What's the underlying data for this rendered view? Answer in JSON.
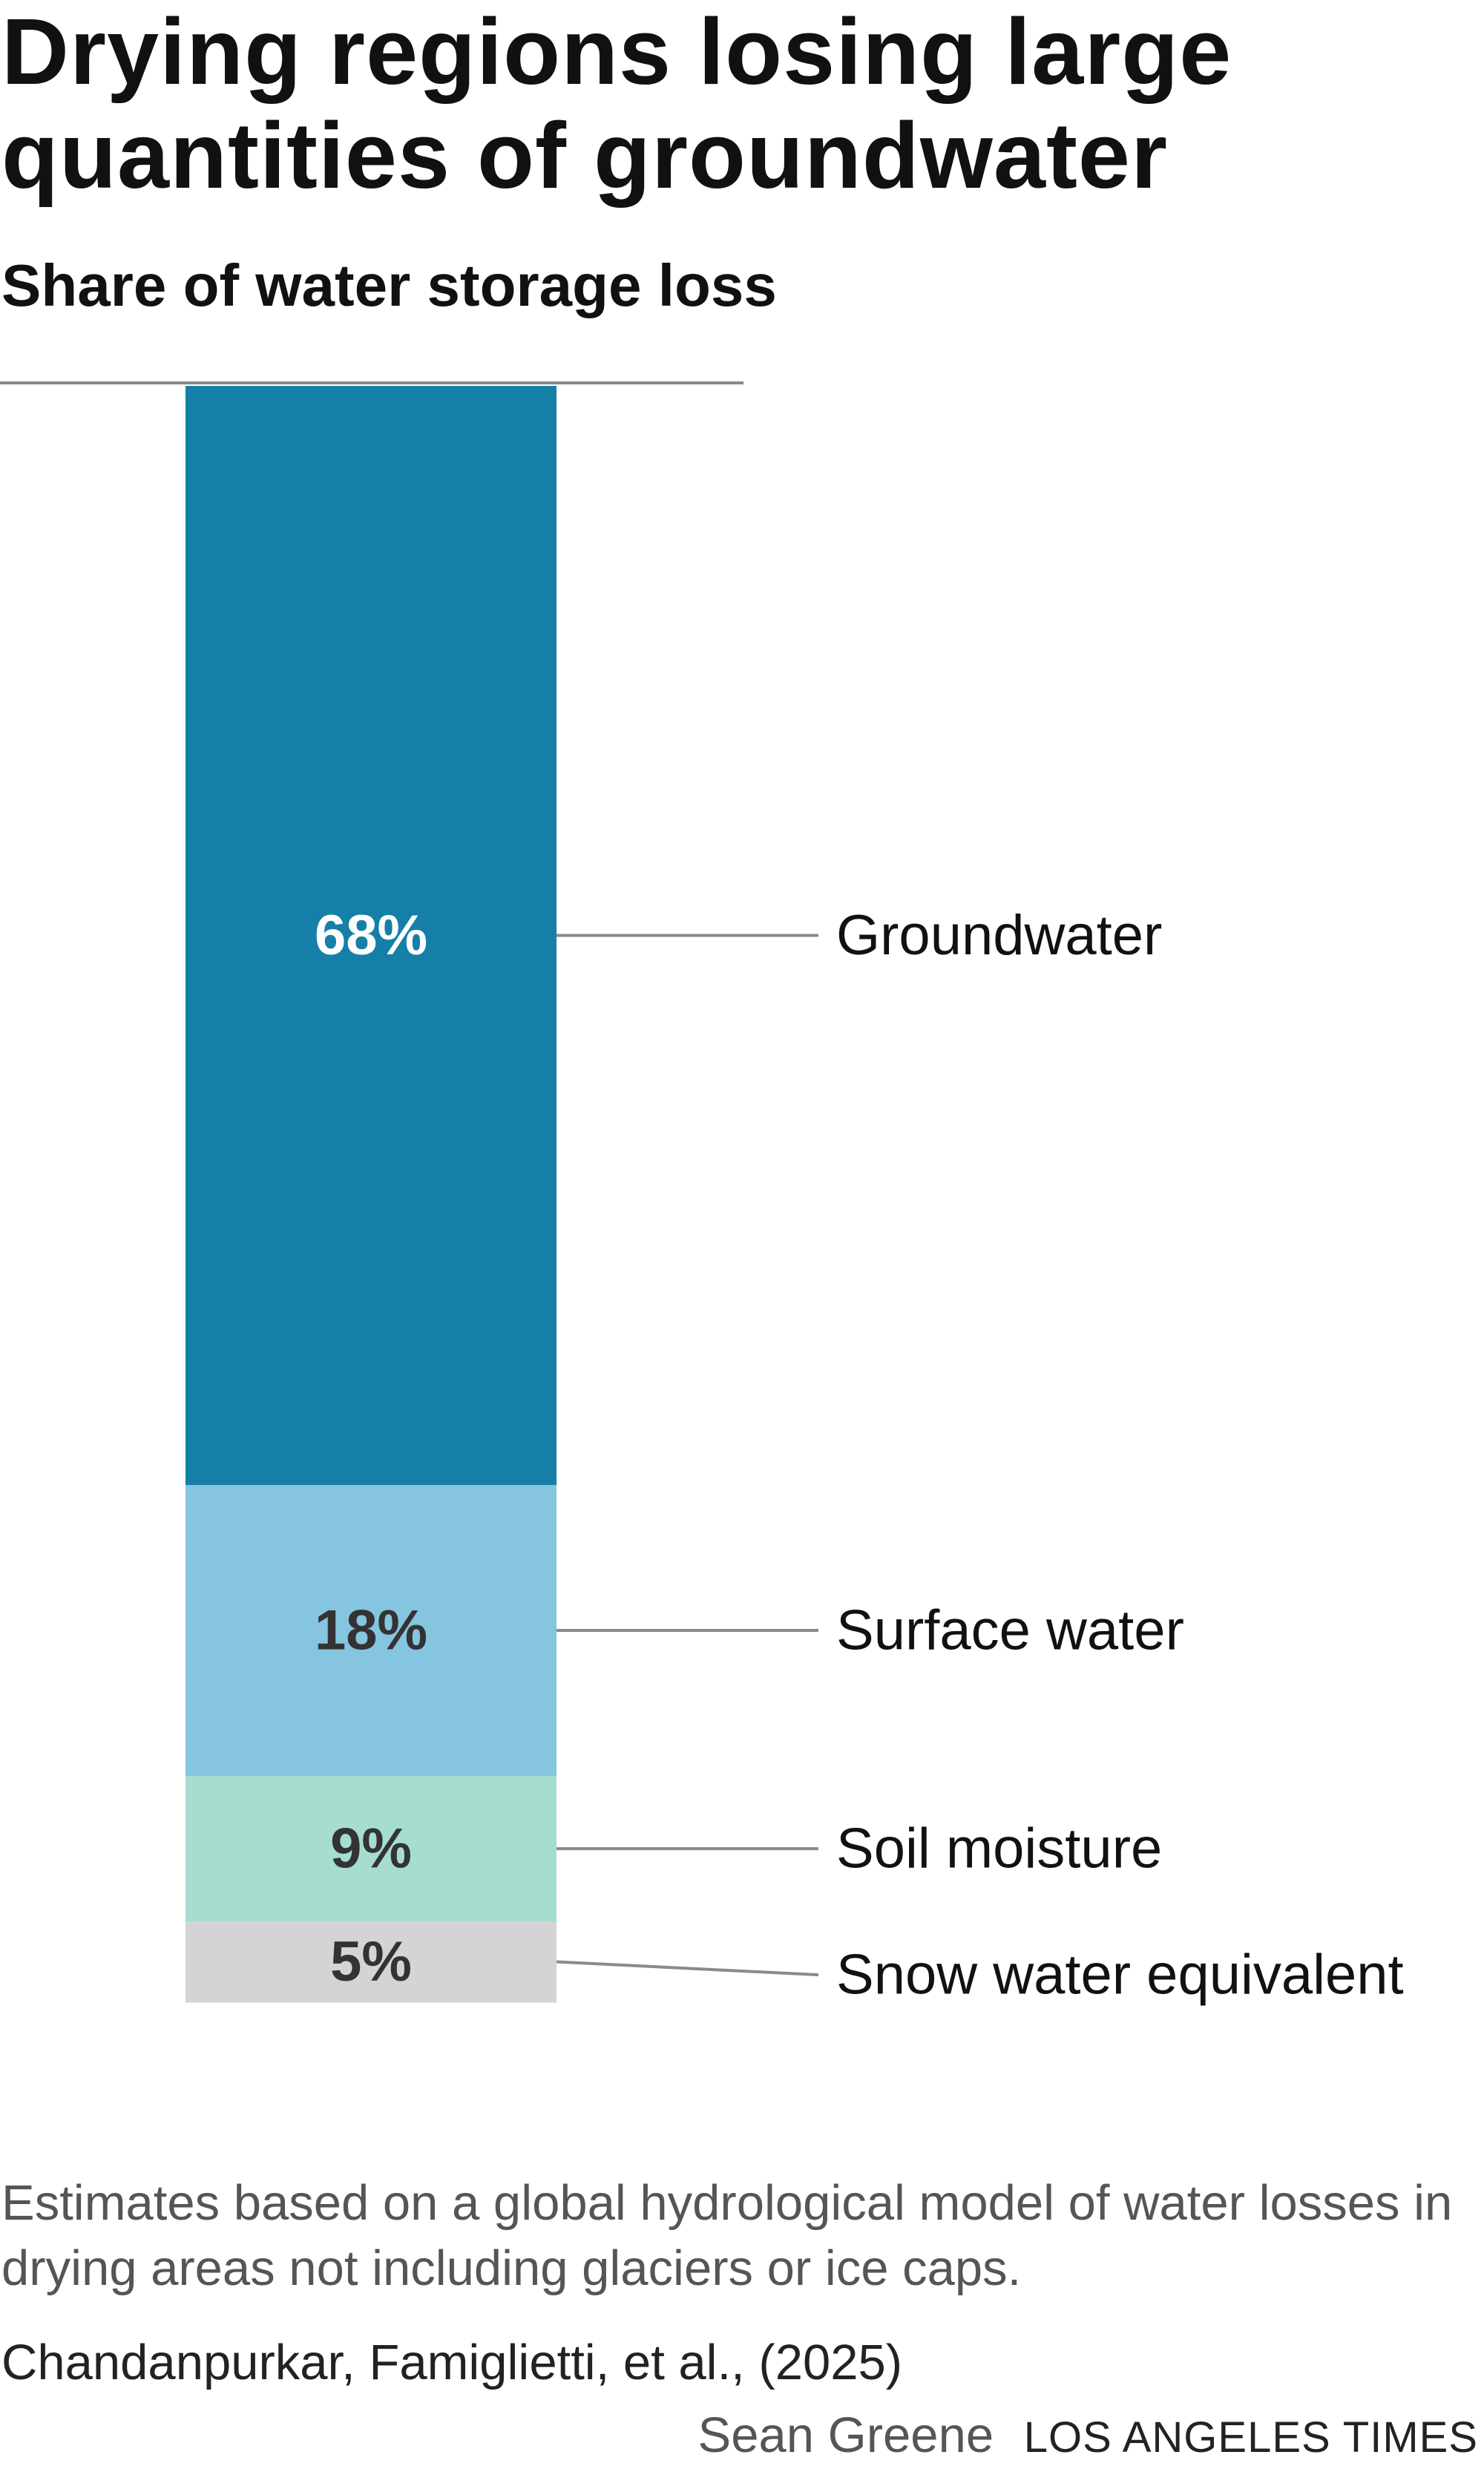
{
  "title": "Drying regions losing large quantities of groundwater",
  "subtitle": "Share of water storage loss",
  "note": "Estimates based on a global hydrological model of water losses in drying areas not including glaciers or ice caps.",
  "source": "Chandanpurkar, Famiglietti, et al., (2025)",
  "credit": {
    "author": "Sean Greene",
    "organization": "LOS ANGELES TIMES"
  },
  "chart_data": {
    "type": "bar",
    "stacked": true,
    "orientation": "vertical",
    "title": "Drying regions losing large quantities of groundwater",
    "subtitle": "Share of water storage loss",
    "unit": "%",
    "categories": [
      "Groundwater",
      "Surface water",
      "Soil moisture",
      "Snow water equivalent"
    ],
    "values": [
      68,
      18,
      9,
      5
    ],
    "labels": [
      "68%",
      "18%",
      "9%",
      "5%"
    ],
    "colors": [
      "#167fa8",
      "#85c5e0",
      "#a6ddd0",
      "#d4d4d6"
    ],
    "label_colors": [
      "#ffffff",
      "#333333",
      "#333333",
      "#333333"
    ],
    "grid": false,
    "legend": "direct labels right of bar"
  }
}
